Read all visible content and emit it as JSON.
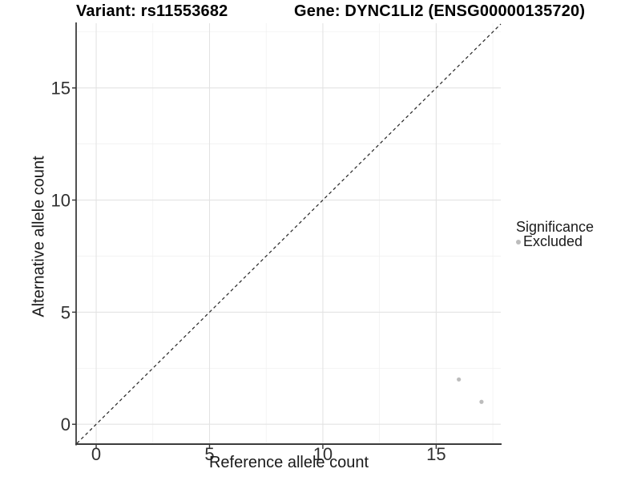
{
  "chart_data": {
    "type": "scatter",
    "titles": {
      "variant": "Variant: rs11553682",
      "gene": "Gene: DYNC1LI2 (ENSG00000135720)"
    },
    "x": {
      "label": "Reference allele count",
      "lim": [
        -0.85,
        17.85
      ],
      "ticks": [
        0,
        5,
        10,
        15
      ],
      "tick_labels": [
        "0",
        "5",
        "10",
        "15"
      ],
      "minor_ticks": [
        2.5,
        7.5,
        12.5,
        17.5
      ]
    },
    "y": {
      "label": "Alternative allele count",
      "lim": [
        -0.85,
        17.85
      ],
      "ticks": [
        0,
        5,
        10,
        15
      ],
      "tick_labels": [
        "0",
        "5",
        "10",
        "15"
      ],
      "minor_ticks": [
        2.5,
        7.5,
        12.5,
        17.5
      ]
    },
    "series": [
      {
        "name": "Excluded",
        "color": "#bcbcbc",
        "points": [
          {
            "x": 16,
            "y": 2
          },
          {
            "x": 17,
            "y": 1
          }
        ]
      }
    ],
    "reference_line": {
      "type": "identity",
      "slope": 1,
      "intercept": 0,
      "style": "dashed",
      "color": "#2b2b2b"
    },
    "grid": {
      "major": true,
      "minor": true,
      "major_color": "#e3e3e3",
      "minor_color": "#efefef"
    },
    "legend": {
      "position": "right",
      "title": "Significance",
      "entries": [
        {
          "label": "Excluded",
          "color": "#bcbcbc"
        }
      ]
    },
    "panel_background": "#ffffff",
    "axis_color": "#3c3c3c"
  }
}
